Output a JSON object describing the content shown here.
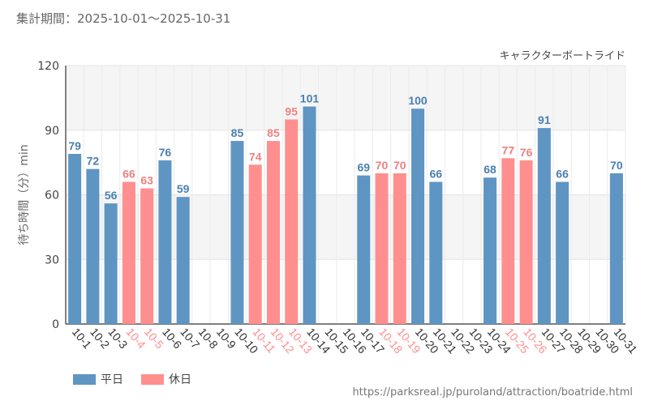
{
  "header": {
    "period_text": "集計期間：2025-10-01〜2025-10-31"
  },
  "footer": {
    "source_url": "https://parksreal.jp/puroland/attraction/boatride.html"
  },
  "colors": {
    "weekday": "#5f95c3",
    "holiday": "#ff8f8f",
    "weekday_label": "#4b7fb0",
    "holiday_label": "#f08080"
  },
  "legend": [
    {
      "label": "平日",
      "color": "#5f95c3"
    },
    {
      "label": "休日",
      "color": "#ff8f8f"
    }
  ],
  "chart_data": {
    "type": "bar",
    "title": "キャラクターボートライド",
    "xlabel": "",
    "ylabel": "待ち時間（分）min",
    "ylim": [
      0,
      120
    ],
    "yticks": [
      0,
      30,
      60,
      90,
      120
    ],
    "categories": [
      "10-1",
      "10-2",
      "10-3",
      "10-4",
      "10-5",
      "10-6",
      "10-7",
      "10-8",
      "10-9",
      "10-10",
      "10-11",
      "10-12",
      "10-13",
      "10-14",
      "10-15",
      "10-16",
      "10-17",
      "10-18",
      "10-19",
      "10-20",
      "10-21",
      "10-22",
      "10-23",
      "10-24",
      "10-25",
      "10-26",
      "10-27",
      "10-28",
      "10-29",
      "10-30",
      "10-31"
    ],
    "values": [
      79,
      72,
      56,
      66,
      63,
      76,
      59,
      null,
      null,
      85,
      74,
      85,
      95,
      101,
      null,
      null,
      69,
      70,
      70,
      100,
      66,
      null,
      null,
      68,
      77,
      76,
      91,
      66,
      null,
      null,
      70
    ],
    "holiday": [
      false,
      false,
      false,
      true,
      true,
      false,
      false,
      false,
      false,
      false,
      true,
      true,
      true,
      false,
      false,
      false,
      false,
      true,
      true,
      false,
      false,
      false,
      false,
      false,
      true,
      true,
      false,
      false,
      false,
      false,
      false
    ]
  }
}
